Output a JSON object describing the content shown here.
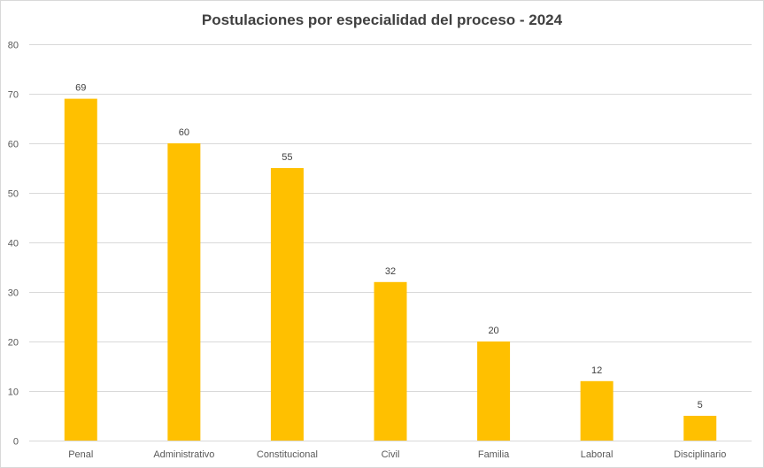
{
  "chart_data": {
    "type": "bar",
    "title": "Postulaciones por especialidad del proceso - 2024",
    "categories": [
      "Penal",
      "Administrativo",
      "Constitucional",
      "Civil",
      "Familia",
      "Laboral",
      "Disciplinario"
    ],
    "values": [
      69,
      60,
      55,
      32,
      20,
      12,
      5
    ],
    "ylim": [
      0,
      80
    ],
    "yticks": [
      0,
      10,
      20,
      30,
      40,
      50,
      60,
      70,
      80
    ],
    "grid": true,
    "legend": "none",
    "bar_color": "#FFC000",
    "grid_color": "#D9D9D9"
  }
}
